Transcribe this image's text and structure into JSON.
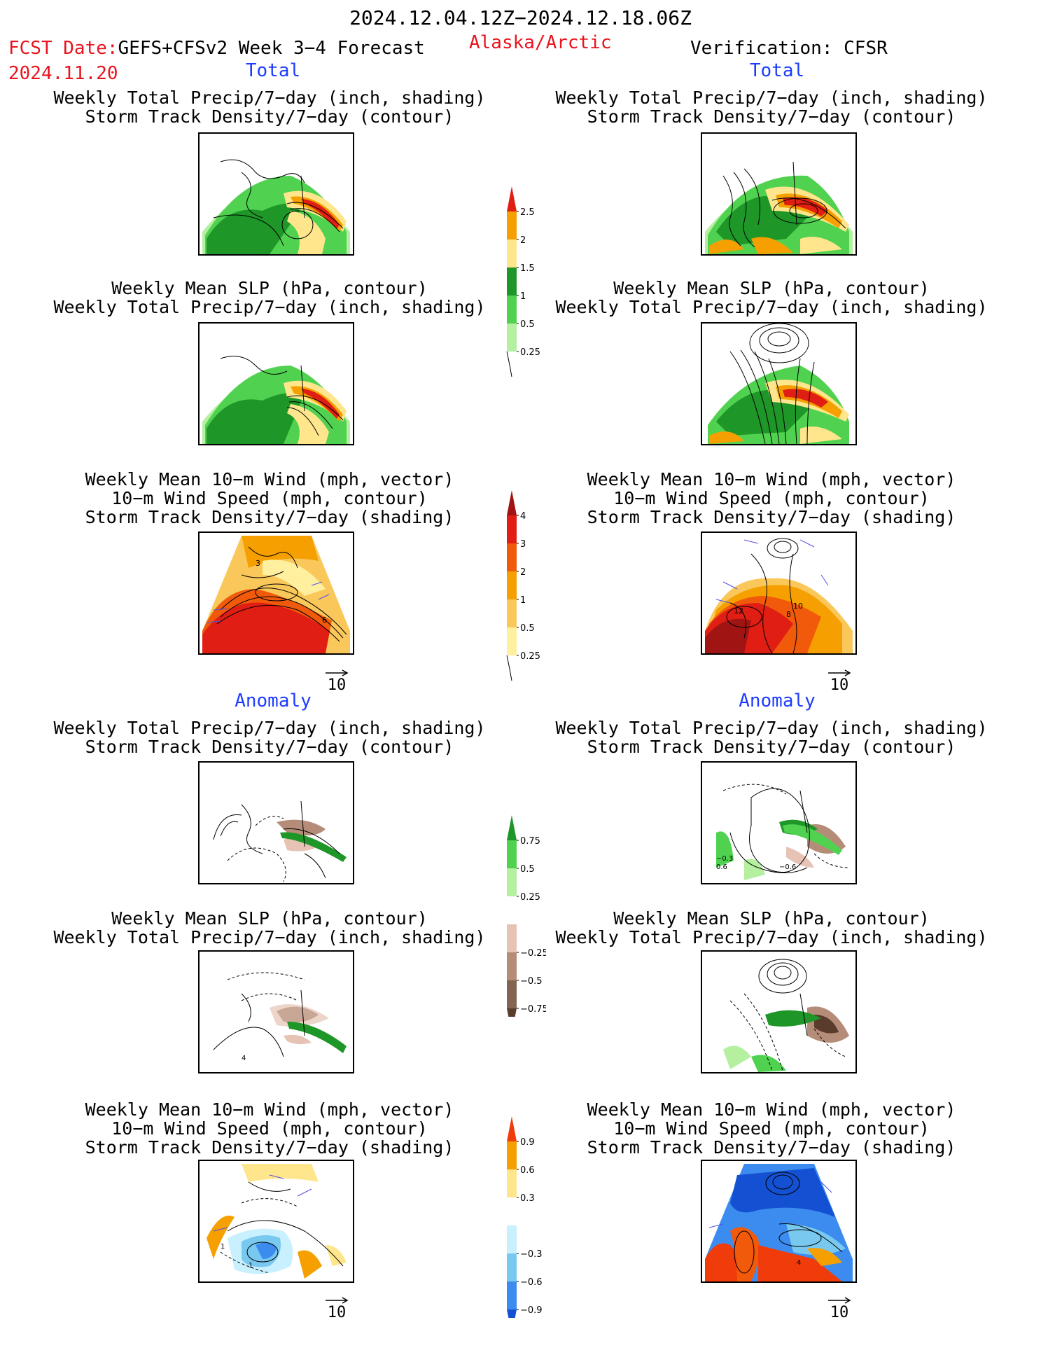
{
  "header": {
    "date_range": "2024.12.04.12Z−2024.12.18.06Z",
    "fcst_label": "FCST Date:",
    "fcst_model": "GEFS+CFSv2 Week 3−4 Forecast",
    "fcst_date": "2024.11.20",
    "region": "Alaska/Arctic",
    "verification": "Verification: CFSR"
  },
  "sections": {
    "total": "Total",
    "anomaly": "Anomaly"
  },
  "captions": {
    "precip_storm": [
      "Weekly Total Precip/7−day (inch, shading)",
      "Storm Track Density/7−day (contour)"
    ],
    "slp_precip": [
      "Weekly Mean SLP (hPa, contour)",
      "Weekly Total Precip/7−day (inch, shading)"
    ],
    "wind_storm": [
      "Weekly Mean 10−m Wind (mph, vector)",
      "10−m Wind Speed (mph, contour)",
      "Storm Track Density/7−day (shading)"
    ]
  },
  "vector_scale": "10",
  "panel_labels": {
    "fc_total_wind": [
      "3",
      "6"
    ],
    "obs_total_wind": [
      "12",
      "8",
      "10"
    ],
    "obs_anom_precip": [
      "−0.3",
      "0.6",
      "−0.6"
    ],
    "fc_anom_slp": [
      "4"
    ],
    "fc_anom_wind": [
      "1",
      "1"
    ],
    "obs_anom_wind": [
      "4"
    ]
  },
  "colorbars": {
    "total_precip": {
      "labels": [
        "2.5",
        "2",
        "1.5",
        "1",
        "0.5",
        "0.25"
      ],
      "colors": [
        "#e01e14",
        "#f5a000",
        "#ffe68c",
        "#1e9628",
        "#50d250",
        "#b4f0a0"
      ]
    },
    "total_storm": {
      "labels": [
        "4",
        "3",
        "2",
        "1",
        "0.5",
        "0.25"
      ],
      "colors": [
        "#a01414",
        "#e01e14",
        "#f05a0a",
        "#f5a000",
        "#fac85a",
        "#fff0a0"
      ]
    },
    "anom_precip": {
      "labels": [
        "0.75",
        "0.5",
        "0.25",
        "−0.25",
        "−0.5",
        "−0.75"
      ],
      "colors": [
        "#1e9628",
        "#50d250",
        "#b4f0a0",
        "#ffffff",
        "#e6c3b4",
        "#b48c78",
        "#826450",
        "#5a3c2d"
      ]
    },
    "anom_storm": {
      "labels": [
        "0.9",
        "0.6",
        "0.3",
        "−0.3",
        "−0.6",
        "−0.9"
      ],
      "colors": [
        "#f03c0a",
        "#f5a000",
        "#ffe68c",
        "#ffffff",
        "#c8f0ff",
        "#78c8f0",
        "#3c8cf0",
        "#1450d2"
      ]
    }
  }
}
